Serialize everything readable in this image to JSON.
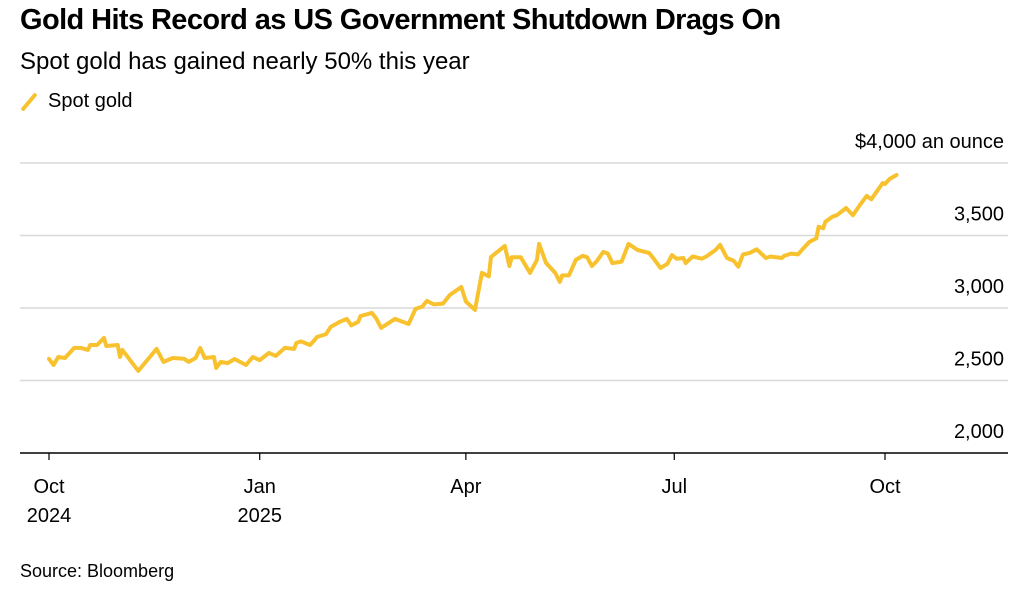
{
  "title": "Gold Hits Record as US Government Shutdown Drags On",
  "subtitle": "Spot gold has gained nearly 50% this year",
  "source": "Source: Bloomberg",
  "chart_data": {
    "type": "line",
    "title": "Gold Hits Record as US Government Shutdown Drags On",
    "subtitle": "Spot gold has gained nearly 50% this year",
    "ylabel": "$4,000 an ounce",
    "xlabel": "",
    "ylim": [
      2000,
      4000
    ],
    "xlim": [
      "2024-09-30",
      "2025-12-25"
    ],
    "yticks": [
      {
        "value": 4000,
        "label": "$4,000 an ounce"
      },
      {
        "value": 3500,
        "label": "3,500"
      },
      {
        "value": 3000,
        "label": "3,000"
      },
      {
        "value": 2500,
        "label": "2,500"
      },
      {
        "value": 2000,
        "label": "2,000"
      }
    ],
    "xticks": [
      {
        "date": "2024-10-01",
        "label": "Oct",
        "sublabel": "2024"
      },
      {
        "date": "2025-01-01",
        "label": "Jan",
        "sublabel": "2025"
      },
      {
        "date": "2025-04-01",
        "label": "Apr",
        "sublabel": ""
      },
      {
        "date": "2025-07-01",
        "label": "Jul",
        "sublabel": ""
      },
      {
        "date": "2025-10-01",
        "label": "Oct",
        "sublabel": ""
      }
    ],
    "grid": true,
    "legend_position": "top-left",
    "series": [
      {
        "name": "Spot gold",
        "color": "#f8c12e",
        "x": [
          "2024-10-01",
          "2024-10-03",
          "2024-10-05",
          "2024-10-08",
          "2024-10-12",
          "2024-10-15",
          "2024-10-18",
          "2024-10-19",
          "2024-10-22",
          "2024-10-25",
          "2024-10-26",
          "2024-10-31",
          "2024-11-01",
          "2024-11-02",
          "2024-11-09",
          "2024-11-17",
          "2024-11-20",
          "2024-11-24",
          "2024-11-29",
          "2024-12-01",
          "2024-12-04",
          "2024-12-06",
          "2024-12-08",
          "2024-12-12",
          "2024-12-13",
          "2024-12-15",
          "2024-12-18",
          "2024-12-21",
          "2024-12-26",
          "2024-12-29",
          "2025-01-01",
          "2025-01-05",
          "2025-01-08",
          "2025-01-12",
          "2025-01-16",
          "2025-01-17",
          "2025-01-19",
          "2025-01-23",
          "2025-01-25",
          "2025-01-26",
          "2025-01-30",
          "2025-02-01",
          "2025-02-05",
          "2025-02-08",
          "2025-02-10",
          "2025-02-13",
          "2025-02-14",
          "2025-02-19",
          "2025-02-21",
          "2025-02-23",
          "2025-03-01",
          "2025-03-07",
          "2025-03-10",
          "2025-03-13",
          "2025-03-15",
          "2025-03-18",
          "2025-03-22",
          "2025-03-25",
          "2025-03-30",
          "2025-04-01",
          "2025-04-05",
          "2025-04-08",
          "2025-04-11",
          "2025-04-12",
          "2025-04-18",
          "2025-04-20",
          "2025-04-21",
          "2025-04-25",
          "2025-04-29",
          "2025-05-02",
          "2025-05-03",
          "2025-05-06",
          "2025-05-10",
          "2025-05-12",
          "2025-05-13",
          "2025-05-16",
          "2025-05-19",
          "2025-05-22",
          "2025-05-24",
          "2025-05-26",
          "2025-05-28",
          "2025-05-31",
          "2025-06-02",
          "2025-06-04",
          "2025-06-08",
          "2025-06-11",
          "2025-06-15",
          "2025-06-20",
          "2025-06-22",
          "2025-06-25",
          "2025-06-28",
          "2025-06-30",
          "2025-07-02",
          "2025-07-05",
          "2025-07-06",
          "2025-07-09",
          "2025-07-13",
          "2025-07-15",
          "2025-07-19",
          "2025-07-21",
          "2025-07-24",
          "2025-07-27",
          "2025-07-29",
          "2025-07-31",
          "2025-08-03",
          "2025-08-06",
          "2025-08-10",
          "2025-08-12",
          "2025-08-17",
          "2025-08-18",
          "2025-08-21",
          "2025-08-24",
          "2025-08-26",
          "2025-08-29",
          "2025-09-01",
          "2025-09-02",
          "2025-09-04",
          "2025-09-05",
          "2025-09-08",
          "2025-09-10",
          "2025-09-14",
          "2025-09-17",
          "2025-09-20",
          "2025-09-23",
          "2025-09-25",
          "2025-09-30",
          "2025-10-01",
          "2025-10-03",
          "2025-10-06"
        ],
        "values": [
          2649,
          2607,
          2662,
          2655,
          2725,
          2725,
          2711,
          2745,
          2745,
          2794,
          2738,
          2745,
          2662,
          2711,
          2566,
          2718,
          2628,
          2655,
          2650,
          2628,
          2655,
          2725,
          2655,
          2662,
          2587,
          2628,
          2620,
          2648,
          2607,
          2662,
          2640,
          2690,
          2670,
          2725,
          2718,
          2759,
          2770,
          2745,
          2780,
          2800,
          2820,
          2870,
          2905,
          2925,
          2880,
          2905,
          2945,
          2966,
          2925,
          2863,
          2925,
          2890,
          2994,
          3010,
          3049,
          3025,
          3030,
          3090,
          3145,
          3045,
          2987,
          3242,
          3218,
          3352,
          3428,
          3290,
          3350,
          3350,
          3242,
          3330,
          3442,
          3311,
          3242,
          3180,
          3225,
          3225,
          3332,
          3360,
          3350,
          3290,
          3320,
          3387,
          3375,
          3310,
          3320,
          3442,
          3400,
          3380,
          3340,
          3276,
          3305,
          3365,
          3340,
          3345,
          3310,
          3355,
          3340,
          3355,
          3400,
          3435,
          3345,
          3325,
          3285,
          3370,
          3380,
          3405,
          3345,
          3355,
          3345,
          3360,
          3375,
          3370,
          3405,
          3456,
          3480,
          3560,
          3550,
          3595,
          3630,
          3640,
          3690,
          3640,
          3710,
          3773,
          3750,
          3862,
          3855,
          3890,
          3917
        ]
      }
    ]
  }
}
